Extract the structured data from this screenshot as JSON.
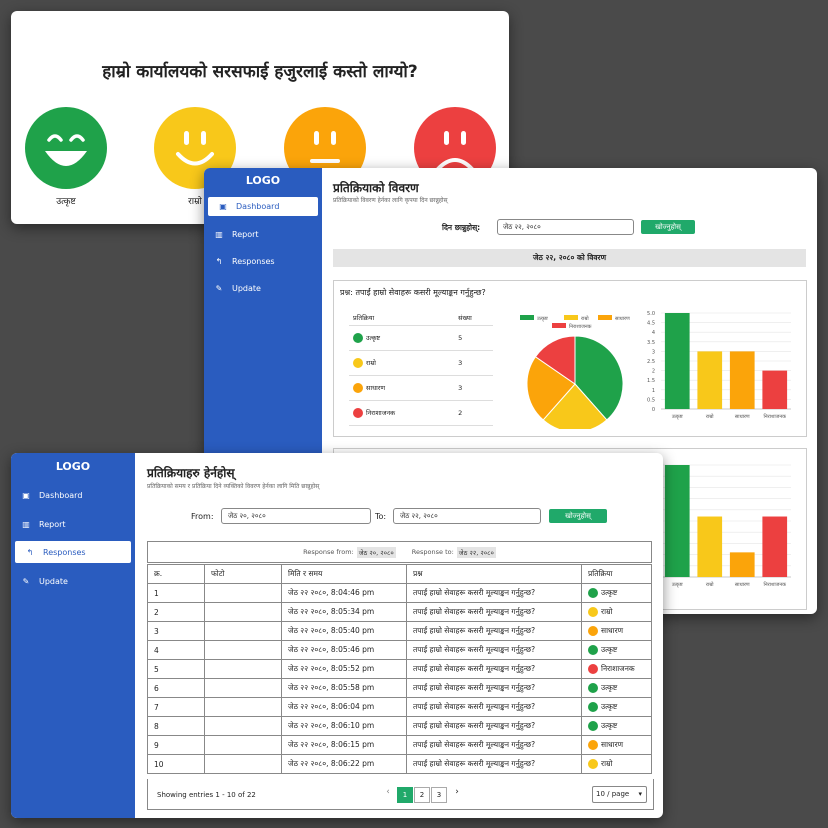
{
  "kiosk": {
    "question": "हाम्रो कार्यालयको सरसफाई हजुरलाई कस्तो लाग्यो?",
    "faces": [
      {
        "label": "उत्कृष्ट",
        "color": "#1fa24a"
      },
      {
        "label": "राम्रो",
        "color": "#f8c81a"
      },
      {
        "label": "",
        "color": "#fba40a"
      },
      {
        "label": "",
        "color": "#ec4040"
      }
    ]
  },
  "dashboard": {
    "logo": "LOGO",
    "nav": [
      "Dashboard",
      "Report",
      "Responses",
      "Update"
    ],
    "title": "प्रतिक्रियाको विवरण",
    "subtitle": "प्रतिक्रियाको विवरण हेर्नका लागि कृपया दिन छान्नुहोस्",
    "date_label": "दिन छान्नुहोस्:",
    "date_value": "जेठ २२, २०८०",
    "search_button": "खोज्नुहोस्",
    "banner": "जेठ २२, २०८० को विवरण",
    "question": "प्रश्न: तपाईं हाम्रो सेवाहरू कसरी मूल्याङ्कन गर्नुहुन्छ?",
    "table_headers": [
      "प्रतिक्रिया",
      "संख्या"
    ],
    "rows": [
      {
        "label": "उत्कृष्ट",
        "count": "5"
      },
      {
        "label": "राम्रो",
        "count": "3"
      },
      {
        "label": "साधारण",
        "count": "3"
      },
      {
        "label": "निराशाजनक",
        "count": "2"
      }
    ]
  },
  "chart_data": [
    {
      "type": "pie",
      "legend": [
        "उत्कृष्ट",
        "राम्रो",
        "साधारण",
        "निराशाजनक"
      ],
      "values": [
        5,
        3,
        3,
        2
      ],
      "colors": [
        "#1fa24a",
        "#f8c81a",
        "#fba40a",
        "#ec4040"
      ],
      "legend_position": "top"
    },
    {
      "type": "bar",
      "categories": [
        "उत्कृष्ट",
        "राम्रो",
        "साधारण",
        "निराशाजनक"
      ],
      "values": [
        5,
        3,
        3,
        2
      ],
      "colors": [
        "#1fa24a",
        "#f8c81a",
        "#fba40a",
        "#ec4040"
      ],
      "ylim": [
        0,
        5
      ],
      "yticks": [
        "0",
        "0.5",
        "1",
        "1.5",
        "2",
        "2.5",
        "3",
        "3.5",
        "4",
        "4.5",
        "5.0"
      ],
      "grid": true
    },
    {
      "type": "bar",
      "categories": [
        "उत्कृष्ट",
        "राम्रो",
        "साधारण",
        "निराशाजनक"
      ],
      "values": [
        5,
        2.7,
        1.1,
        2.7
      ],
      "colors": [
        "#1fa24a",
        "#f8c81a",
        "#fba40a",
        "#ec4040"
      ],
      "ylim": [
        0,
        5
      ],
      "grid": true
    }
  ],
  "responses": {
    "logo": "LOGO",
    "nav": [
      "Dashboard",
      "Report",
      "Responses",
      "Update"
    ],
    "title": "प्रतिक्रियाहरु हेर्नहोस्",
    "subtitle": "प्रतिक्रियाको समय र प्रतिक्रिया दिने व्यक्तिको विवरण हेर्नका लागि मिति छान्नुहोस्",
    "from_label": "From:",
    "from_value": "जेठ २०, २०८०",
    "to_label": "To:",
    "to_value": "जेठ २२, २०८०",
    "search_button": "खोज्नुहोस्",
    "range_from_label": "Response from:",
    "range_from_value": "जेठ २०, २०८०",
    "range_to_label": "Response to:",
    "range_to_value": "जेठ २२, २०८०",
    "headers": [
      "क्र.",
      "फोटो",
      "मिति र समय",
      "प्रश्न",
      "प्रतिक्रिया"
    ],
    "rows": [
      {
        "n": "1",
        "time": "जेठ २२ २०८०, 8:04:46 pm",
        "q": "तपाईं हाम्रो सेवाहरू कसरी मूल्याङ्कन गर्नुहुन्छ?",
        "resp": "उत्कृष्ट",
        "color": "#1fa24a"
      },
      {
        "n": "2",
        "time": "जेठ २२ २०८०, 8:05:34 pm",
        "q": "तपाईं हाम्रो सेवाहरू कसरी मूल्याङ्कन गर्नुहुन्छ?",
        "resp": "राम्रो",
        "color": "#f8c81a"
      },
      {
        "n": "3",
        "time": "जेठ २२ २०८०, 8:05:40 pm",
        "q": "तपाईं हाम्रो सेवाहरू कसरी मूल्याङ्कन गर्नुहुन्छ?",
        "resp": "साधारण",
        "color": "#fba40a"
      },
      {
        "n": "4",
        "time": "जेठ २२ २०८०, 8:05:46 pm",
        "q": "तपाईं हाम्रो सेवाहरू कसरी मूल्याङ्कन गर्नुहुन्छ?",
        "resp": "उत्कृष्ट",
        "color": "#1fa24a"
      },
      {
        "n": "5",
        "time": "जेठ २२ २०८०, 8:05:52 pm",
        "q": "तपाईं हाम्रो सेवाहरू कसरी मूल्याङ्कन गर्नुहुन्छ?",
        "resp": "निराशाजनक",
        "color": "#ec4040"
      },
      {
        "n": "6",
        "time": "जेठ २२ २०८०, 8:05:58 pm",
        "q": "तपाईं हाम्रो सेवाहरू कसरी मूल्याङ्कन गर्नुहुन्छ?",
        "resp": "उत्कृष्ट",
        "color": "#1fa24a"
      },
      {
        "n": "7",
        "time": "जेठ २२ २०८०, 8:06:04 pm",
        "q": "तपाईं हाम्रो सेवाहरू कसरी मूल्याङ्कन गर्नुहुन्छ?",
        "resp": "उत्कृष्ट",
        "color": "#1fa24a"
      },
      {
        "n": "8",
        "time": "जेठ २२ २०८०, 8:06:10 pm",
        "q": "तपाईं हाम्रो सेवाहरू कसरी मूल्याङ्कन गर्नुहुन्छ?",
        "resp": "उत्कृष्ट",
        "color": "#1fa24a"
      },
      {
        "n": "9",
        "time": "जेठ २२ २०८०, 8:06:15 pm",
        "q": "तपाईं हाम्रो सेवाहरू कसरी मूल्याङ्कन गर्नुहुन्छ?",
        "resp": "साधारण",
        "color": "#fba40a"
      },
      {
        "n": "10",
        "time": "जेठ २२ २०८०, 8:06:22 pm",
        "q": "तपाईं हाम्रो सेवाहरू कसरी मूल्याङ्कन गर्नुहुन्छ?",
        "resp": "राम्रो",
        "color": "#f8c81a"
      }
    ],
    "footer": "Showing entries 1 - 10 of 22",
    "pages": [
      "1",
      "2",
      "3"
    ],
    "page_prev": "‹",
    "page_next": "›",
    "per_page": "10 / page"
  }
}
